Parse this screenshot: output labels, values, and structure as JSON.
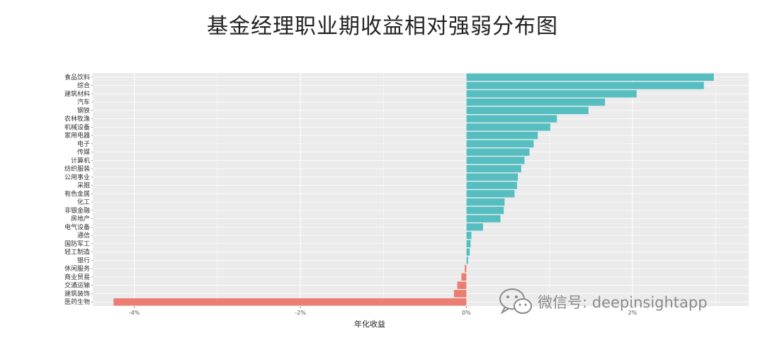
{
  "page": {
    "title": "基金经理职业期收益相对强弱分布图"
  },
  "watermark": {
    "text": "微信号: deepinsightapp",
    "icon": "wechat-icon"
  },
  "chart_data": {
    "type": "bar",
    "orientation": "horizontal",
    "title": "基金经理职业期收益相对强弱分布图",
    "xlabel": "年化收益",
    "ylabel": "",
    "xlim": [
      -4.5,
      3.4
    ],
    "x_ticks": [
      {
        "value": -4,
        "label": "-4%"
      },
      {
        "value": -2,
        "label": "-2%"
      },
      {
        "value": 0,
        "label": "0%"
      },
      {
        "value": 2,
        "label": "2%"
      }
    ],
    "grid": true,
    "legend": "none",
    "colors": {
      "positive": "#56BEC1",
      "negative": "#EB7D72",
      "panel": "#EBEBEB",
      "grid": "#FFFFFF"
    },
    "categories": [
      "食品饮料",
      "综合",
      "建筑材料",
      "汽车",
      "钢铁",
      "农林牧渔",
      "机械设备",
      "家用电器",
      "电子",
      "传媒",
      "计算机",
      "纺织服装",
      "公用事业",
      "采掘",
      "有色金属",
      "化工",
      "非银金融",
      "房地产",
      "电气设备",
      "通信",
      "国防军工",
      "轻工制造",
      "银行",
      "休闲服务",
      "商业贸易",
      "交通运输",
      "建筑装饰",
      "医药生物"
    ],
    "values": [
      2.98,
      2.86,
      2.05,
      1.67,
      1.47,
      1.09,
      1.01,
      0.86,
      0.81,
      0.76,
      0.7,
      0.66,
      0.62,
      0.61,
      0.58,
      0.46,
      0.45,
      0.41,
      0.2,
      0.06,
      0.05,
      0.04,
      0.02,
      -0.02,
      -0.06,
      -0.11,
      -0.15,
      -4.25
    ]
  }
}
